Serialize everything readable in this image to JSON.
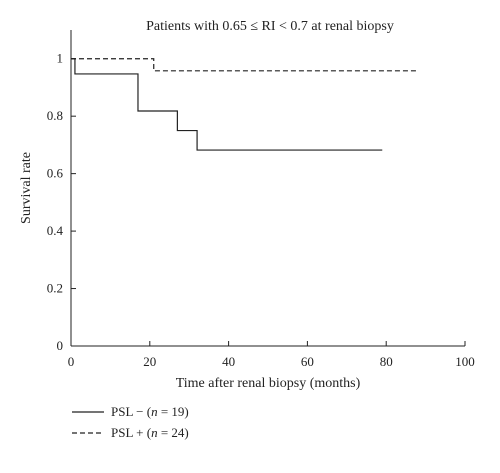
{
  "chart_data": {
    "type": "line",
    "title": "Patients with 0.65 ≤ RI < 0.7 at renal biopsy",
    "xlabel": "Time after renal biopsy (months)",
    "ylabel": "Survival rate",
    "xlim": [
      0,
      100
    ],
    "ylim": [
      0,
      1.1
    ],
    "x_ticks": [
      0,
      20,
      40,
      60,
      80,
      100
    ],
    "y_ticks": [
      0,
      0.2,
      0.4,
      0.6,
      0.8,
      1
    ],
    "grid": false,
    "legend_position": "bottom-left",
    "series": [
      {
        "name_prefix": "PSL − (",
        "name_n": "n",
        "name_suffix": " = 19)",
        "style": "solid",
        "step": true,
        "x": [
          0,
          1,
          17,
          27,
          32,
          79
        ],
        "y": [
          1.0,
          0.947,
          0.818,
          0.75,
          0.682,
          0.682
        ]
      },
      {
        "name_prefix": "PSL + (",
        "name_n": "n",
        "name_suffix": " = 24)",
        "style": "dashed",
        "step": true,
        "x": [
          0,
          21,
          88
        ],
        "y": [
          1.0,
          0.958,
          0.958
        ]
      }
    ]
  }
}
